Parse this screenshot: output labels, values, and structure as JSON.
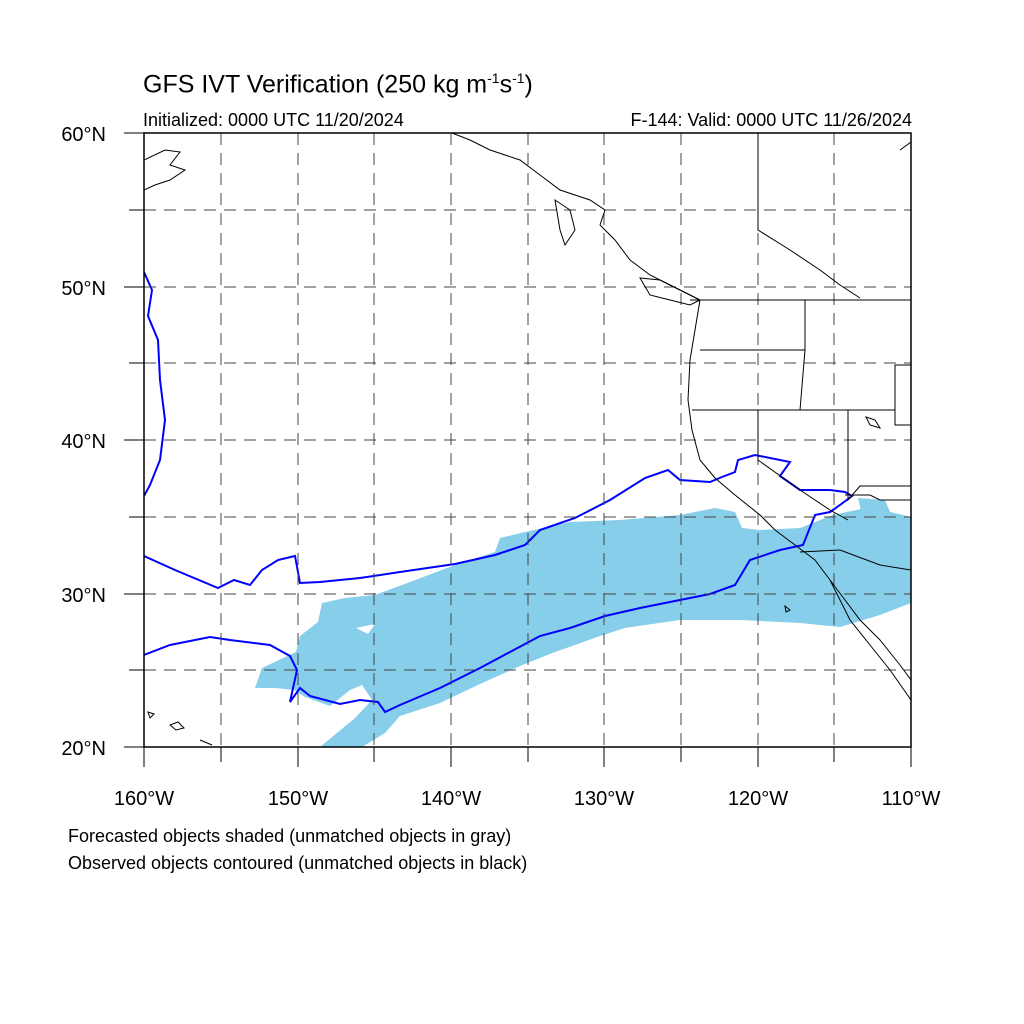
{
  "header": {
    "title_main": "GFS IVT Verification (250 kg m",
    "title_exp1": "-1",
    "title_mid": "s",
    "title_exp2": "-1",
    "title_end": ")",
    "initialized": "Initialized: 0000 UTC 11/20/2024",
    "valid": "F-144: Valid: 0000 UTC 11/26/2024"
  },
  "map": {
    "lon_labels": [
      "160°W",
      "150°W",
      "140°W",
      "130°W",
      "120°W",
      "110°W"
    ],
    "lat_labels": [
      "60°N",
      "50°N",
      "40°N",
      "30°N",
      "20°N"
    ],
    "lon_range": [
      -160,
      -110
    ],
    "lat_range": [
      20,
      60
    ],
    "grid_spacing_deg": 5,
    "forecast_fill_color": "#87ceeb",
    "observed_contour_color": "#0000ff",
    "coast_color": "#000000"
  },
  "footer": {
    "line1": "Forecasted objects shaded (unmatched objects in gray)",
    "line2": "Observed objects contoured (unmatched objects in black)"
  }
}
